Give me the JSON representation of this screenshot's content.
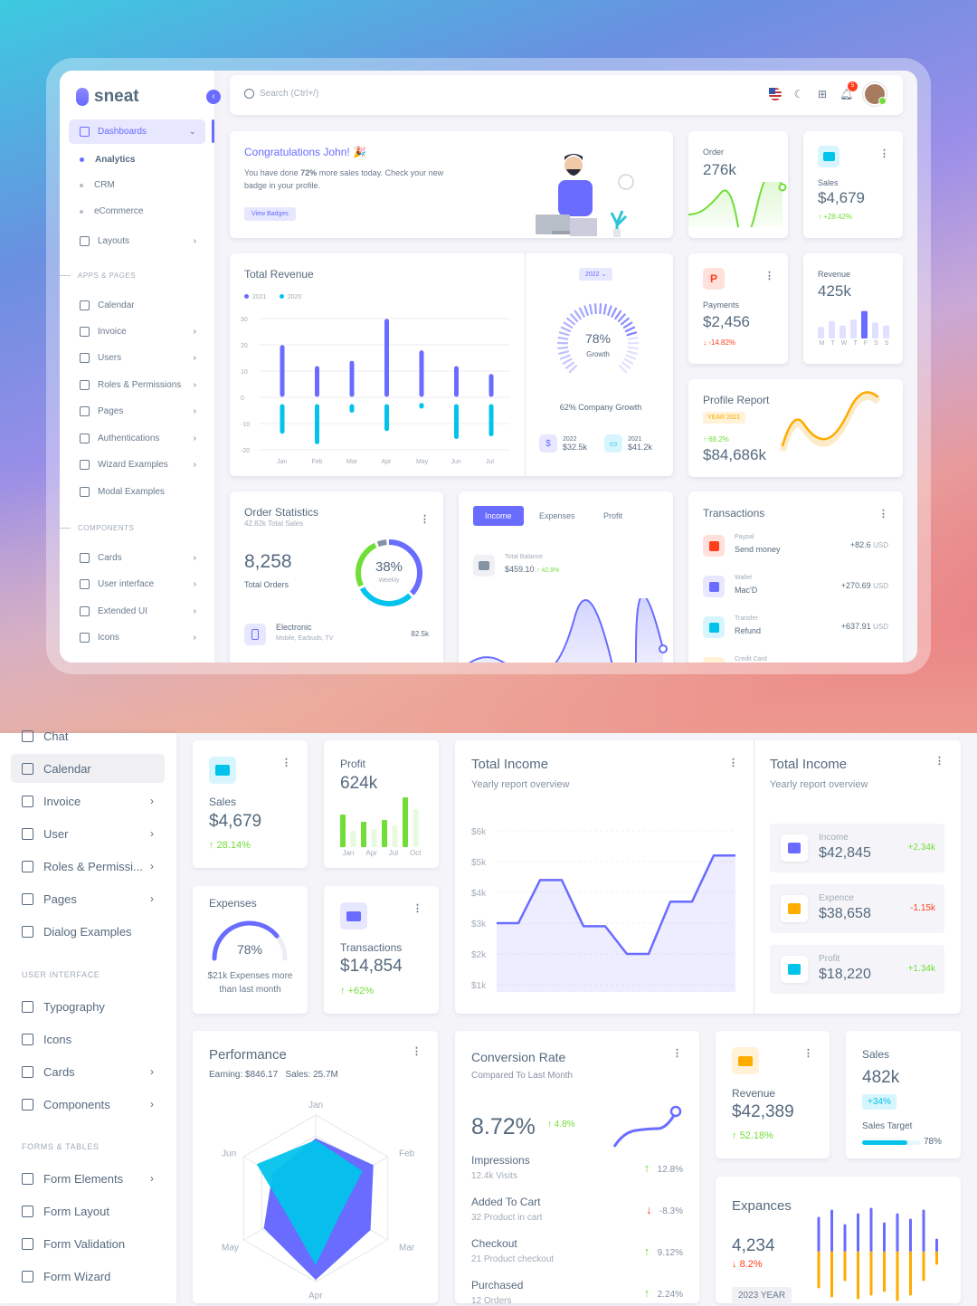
{
  "app": {
    "brand": "sneat",
    "search_placeholder": "Search (Ctrl+/)",
    "notification_count": "5"
  },
  "sidebar": {
    "dashboards": "Dashboards",
    "sub": [
      "Analytics",
      "CRM",
      "eCommerce"
    ],
    "layouts": "Layouts",
    "section_apps": "APPS & PAGES",
    "apps": [
      "Calendar",
      "Invoice",
      "Users",
      "Roles & Permissions",
      "Pages",
      "Authentications",
      "Wizard Examples",
      "Modal Examples"
    ],
    "section_components": "COMPONENTS",
    "components": [
      "Cards",
      "User interface",
      "Extended UI",
      "Icons"
    ]
  },
  "congrats": {
    "title": "Congratulations John! 🎉",
    "text_pre": "You have done ",
    "text_bold": "72%",
    "text_post": " more sales today. Check your new badge in your profile.",
    "button": "View Badges"
  },
  "order": {
    "label": "Order",
    "value": "276k"
  },
  "sales_top": {
    "label": "Sales",
    "value": "$4,679",
    "change": "+28.42%"
  },
  "revenue_chart": {
    "title": "Total Revenue",
    "legend": [
      "2021",
      "2020"
    ],
    "y_ticks": [
      "30",
      "20",
      "10",
      "0",
      "-10",
      "-20"
    ],
    "months": [
      "Jan",
      "Feb",
      "Mar",
      "Apr",
      "May",
      "Jun",
      "Jul"
    ]
  },
  "growth": {
    "year": "2022",
    "percent": "78%",
    "label": "Growth",
    "company": "62% Company Growth",
    "y1": "2022",
    "v1": "$32.5k",
    "y2": "2021",
    "v2": "$41.2k"
  },
  "payments": {
    "label": "Payments",
    "value": "$2,456",
    "change": "-14.82%"
  },
  "revenue_small": {
    "label": "Revenue",
    "value": "425k",
    "days": [
      "M",
      "T",
      "W",
      "T",
      "F",
      "S",
      "S"
    ]
  },
  "profile_report": {
    "title": "Profile Report",
    "badge": "YEAR 2021",
    "change": "68.2%",
    "value": "$84,686k"
  },
  "order_stats": {
    "title": "Order Statistics",
    "sub": "42.82k Total Sales",
    "value": "8,258",
    "label": "Total Orders",
    "donut": "38%",
    "donut_label": "Weekly",
    "item_title": "Electronic",
    "item_sub": "Mobile, Earbuds, TV",
    "item_value": "82.5k"
  },
  "income_tabs": {
    "tabs": [
      "Income",
      "Expenses",
      "Profit"
    ],
    "balance_label": "Total Balance",
    "balance": "$459.10",
    "balance_change": "42.9%"
  },
  "transactions": {
    "title": "Transactions",
    "items": [
      {
        "type": "Paypal",
        "name": "Send money",
        "amount": "+82.6",
        "cur": "USD"
      },
      {
        "type": "Wallet",
        "name": "Mac'D",
        "amount": "+270.69",
        "cur": "USD"
      },
      {
        "type": "Transfer",
        "name": "Refund",
        "amount": "+637.91",
        "cur": "USD"
      },
      {
        "type": "Credit Card",
        "name": "",
        "amount": "",
        "cur": ""
      }
    ]
  },
  "lower_sidebar": {
    "items_top": [
      "Chat",
      "Calendar",
      "Invoice",
      "User",
      "Roles & Permissi...",
      "Pages",
      "Dialog Examples"
    ],
    "section_ui": "USER INTERFACE",
    "items_ui": [
      "Typography",
      "Icons",
      "Cards",
      "Components"
    ],
    "section_forms": "FORMS & TABLES",
    "items_forms": [
      "Form Elements",
      "Form Layout",
      "Form Validation",
      "Form Wizard"
    ]
  },
  "l_sales": {
    "label": "Sales",
    "value": "$4,679",
    "change": "28.14%"
  },
  "l_profit": {
    "label": "Profit",
    "value": "624k",
    "months": [
      "Jan",
      "Apr",
      "Jul",
      "Oct"
    ]
  },
  "l_expenses": {
    "label": "Expenses",
    "percent": "78%",
    "text": "$21k Expenses more than last month"
  },
  "l_transactions": {
    "label": "Transactions",
    "value": "$14,854",
    "change": "+62%"
  },
  "total_income": {
    "title": "Total Income",
    "sub": "Yearly report overview",
    "y_ticks": [
      "$6k",
      "$5k",
      "$4k",
      "$3k",
      "$2k",
      "$1k"
    ]
  },
  "total_income_2": {
    "title": "Total Income",
    "sub": "Yearly report overview",
    "items": [
      {
        "label": "Income",
        "value": "$42,845",
        "change": "+2.34k"
      },
      {
        "label": "Expence",
        "value": "$38,658",
        "change": "-1.15k"
      },
      {
        "label": "Profit",
        "value": "$18,220",
        "change": "+1.34k"
      }
    ]
  },
  "performance": {
    "title": "Performance",
    "earning": "Earning: $846.17",
    "sales": "Sales: 25.7M",
    "labels": [
      "Jan",
      "Feb",
      "Mar",
      "Apr",
      "May",
      "Jun"
    ]
  },
  "conversion": {
    "title": "Conversion Rate",
    "sub": "Compared To Last Month",
    "value": "8.72%",
    "change": "4.8%",
    "rows": [
      {
        "label": "Impressions",
        "sub": "12.4k Visits",
        "change": "12.8%"
      },
      {
        "label": "Added To Cart",
        "sub": "32 Product in cart",
        "change": "-8.3%"
      },
      {
        "label": "Checkout",
        "sub": "21 Product checkout",
        "change": "9.12%"
      },
      {
        "label": "Purchased",
        "sub": "12 Orders",
        "change": "2.24%"
      }
    ]
  },
  "l_revenue": {
    "label": "Revenue",
    "value": "$42,389",
    "change": "52.18%"
  },
  "l_sales2": {
    "label": "Sales",
    "value": "482k",
    "badge": "+34%",
    "target_label": "Sales Target",
    "target": "78%"
  },
  "expances": {
    "title": "Expances",
    "value": "4,234",
    "change": "8.2%",
    "badge": "2023 YEAR"
  },
  "colors": {
    "primary": "#696cff",
    "info": "#03c3ec",
    "success": "#71dd37",
    "danger": "#ff3e1d",
    "warning": "#ffab00"
  }
}
